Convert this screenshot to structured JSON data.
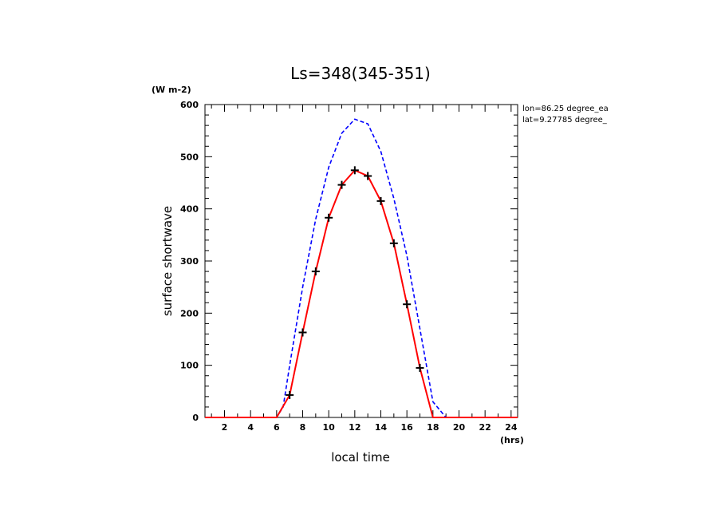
{
  "chart_data": {
    "type": "line",
    "title": "Ls=348(345-351)",
    "xlabel": "local time",
    "ylabel": "surface shortwave",
    "x_unit": "(hrs)",
    "y_unit": "(W m-2)",
    "xlim": [
      0.5,
      24.5
    ],
    "ylim": [
      0,
      600
    ],
    "x_ticks": [
      2,
      4,
      6,
      8,
      10,
      12,
      14,
      16,
      18,
      20,
      22,
      24
    ],
    "y_ticks": [
      0,
      100,
      200,
      300,
      400,
      500,
      600
    ],
    "annotations": [
      "lon=86.25 degree_ea",
      "lat=9.27785 degree_"
    ],
    "series": [
      {
        "color": "#0000ff",
        "style": "dashed",
        "x": [
          0.5,
          1,
          2,
          3,
          4,
          5,
          6,
          6.5,
          7,
          8,
          9,
          10,
          11,
          12,
          13,
          14,
          15,
          16,
          17,
          18,
          19,
          20,
          21,
          22,
          23,
          24,
          24.5
        ],
        "values": [
          0,
          0,
          0,
          0,
          0,
          0,
          0,
          20,
          100,
          250,
          380,
          480,
          545,
          572,
          563,
          510,
          420,
          310,
          170,
          30,
          0,
          0,
          0,
          0,
          0,
          0,
          0
        ]
      },
      {
        "color": "#ff0000",
        "style": "solid",
        "markers": "plus",
        "x": [
          0.5,
          1,
          2,
          3,
          4,
          5,
          6,
          7,
          8,
          9,
          10,
          11,
          12,
          13,
          14,
          15,
          16,
          17,
          18,
          19,
          20,
          21,
          22,
          23,
          24,
          24.5
        ],
        "values": [
          0,
          0,
          0,
          0,
          0,
          0,
          0,
          43,
          163,
          280,
          383,
          446,
          474,
          463,
          415,
          334,
          217,
          95,
          0,
          0,
          0,
          0,
          0,
          0,
          0,
          0
        ]
      }
    ]
  }
}
